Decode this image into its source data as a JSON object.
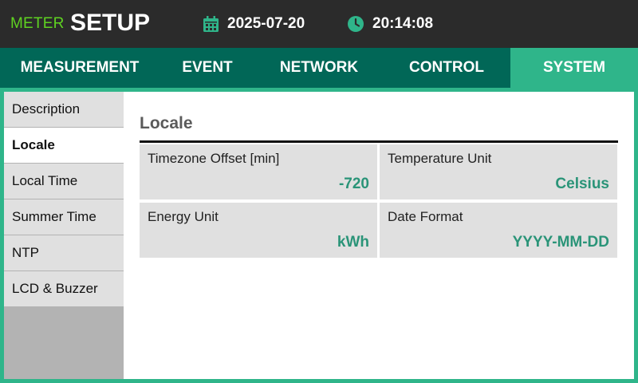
{
  "header": {
    "brand_small": "METER",
    "brand_big": "SETUP",
    "date": "2025-07-20",
    "time": "20:14:08",
    "date_icon": "calendar-icon",
    "time_icon": "clock-icon"
  },
  "tabs": [
    {
      "label": "MEASUREMENT",
      "active": false
    },
    {
      "label": "EVENT",
      "active": false
    },
    {
      "label": "NETWORK",
      "active": false
    },
    {
      "label": "CONTROL",
      "active": false
    },
    {
      "label": "SYSTEM",
      "active": true
    }
  ],
  "sidebar": {
    "items": [
      {
        "label": "Description",
        "active": false
      },
      {
        "label": "Locale",
        "active": true
      },
      {
        "label": "Local Time",
        "active": false
      },
      {
        "label": "Summer Time",
        "active": false
      },
      {
        "label": "NTP",
        "active": false
      },
      {
        "label": "LCD & Buzzer",
        "active": false
      }
    ]
  },
  "main": {
    "section_title": "Locale",
    "fields": [
      {
        "label": "Timezone Offset [min]",
        "value": "-720"
      },
      {
        "label": "Temperature Unit",
        "value": "Celsius"
      },
      {
        "label": "Energy Unit",
        "value": "kWh"
      },
      {
        "label": "Date Format",
        "value": "YYYY-MM-DD"
      }
    ]
  },
  "colors": {
    "accent": "#2fb58a",
    "tab_bar": "#016757",
    "header": "#2b2b2b",
    "brand_green": "#5fd321",
    "value_text": "#2a9478",
    "cell_bg": "#e0e0e0"
  }
}
